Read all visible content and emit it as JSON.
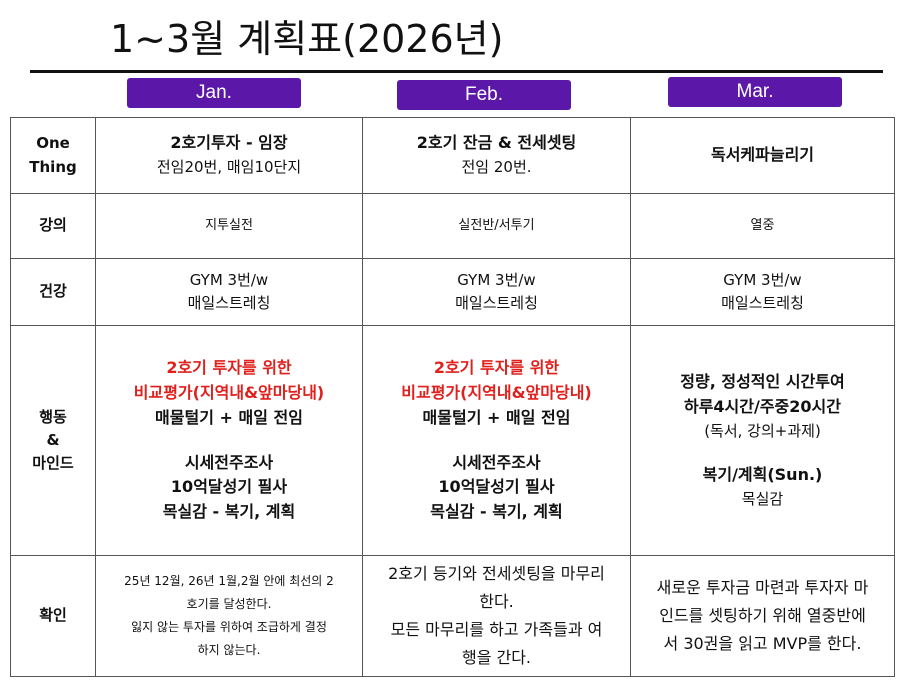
{
  "title": "1~3월 계획표(2026년)",
  "months": [
    "Jan.",
    "Feb.",
    "Mar."
  ],
  "colors": {
    "month_pill": "#5b18a8",
    "highlight": "#e0201c"
  },
  "rows": [
    {
      "label": [
        "One",
        "Thing"
      ],
      "cells": [
        [
          {
            "t": "2호기투자 - 임장",
            "c": "b"
          },
          {
            "t": "전임20번, 매임10단지",
            "c": "n"
          }
        ],
        [
          {
            "t": "2호기 잔금 & 전세셋팅",
            "c": "b"
          },
          {
            "t": "전임 20번.",
            "c": "n"
          }
        ],
        [
          {
            "t": "독서케파늘리기",
            "c": "b"
          }
        ]
      ]
    },
    {
      "label": [
        "강의"
      ],
      "cells": [
        [
          {
            "t": "지투실전",
            "c": "s"
          }
        ],
        [
          {
            "t": "실전반/서투기",
            "c": "s"
          }
        ],
        [
          {
            "t": "열중",
            "c": "s"
          }
        ]
      ]
    },
    {
      "label": [
        "건강"
      ],
      "cells": [
        [
          {
            "t": "GYM 3번/w",
            "c": "n"
          },
          {
            "t": "매일스트레칭",
            "c": "n"
          }
        ],
        [
          {
            "t": "GYM 3번/w",
            "c": "n"
          },
          {
            "t": "매일스트레칭",
            "c": "n"
          }
        ],
        [
          {
            "t": "GYM 3번/w",
            "c": "n"
          },
          {
            "t": "매일스트레칭",
            "c": "n"
          }
        ]
      ]
    },
    {
      "label": [
        "행동",
        "&",
        "마인드"
      ],
      "cells": [
        [
          {
            "t": "2호기 투자를 위한",
            "c": "red"
          },
          {
            "t": "비교평가(지역내&앞마당내)",
            "c": "red"
          },
          {
            "t": "매물털기 + 매일 전임",
            "c": "b"
          },
          {
            "t": "",
            "c": "gap"
          },
          {
            "t": "시세전주조사",
            "c": "b"
          },
          {
            "t": "10억달성기 필사",
            "c": "b"
          },
          {
            "t": "목실감 - 복기, 계획",
            "c": "b"
          }
        ],
        [
          {
            "t": "2호기 투자를 위한",
            "c": "red"
          },
          {
            "t": "비교평가(지역내&앞마당내)",
            "c": "red"
          },
          {
            "t": "매물털기 + 매일 전임",
            "c": "b"
          },
          {
            "t": "",
            "c": "gap"
          },
          {
            "t": "시세전주조사",
            "c": "b"
          },
          {
            "t": "10억달성기 필사",
            "c": "b"
          },
          {
            "t": "목실감 - 복기, 계획",
            "c": "b"
          }
        ],
        [
          {
            "t": "정량, 정성적인 시간투여",
            "c": "b"
          },
          {
            "t": "하루4시간/주중20시간",
            "c": "b"
          },
          {
            "t": "(독서,  강의+과제)",
            "c": "n"
          },
          {
            "t": "",
            "c": "gap"
          },
          {
            "t": "복기/계획(Sun.)",
            "c": "b"
          },
          {
            "t": "목실감",
            "c": "n"
          }
        ]
      ]
    },
    {
      "label": [
        "확인"
      ],
      "cells": [
        [
          {
            "t": "25년 12월, 26년 1월,2월 안에 최선의 2",
            "c": "xs"
          },
          {
            "t": "호기를 달성한다.",
            "c": "xs"
          },
          {
            "t": "잃지 않는 투자를 위하여 조급하게 결정",
            "c": "xs"
          },
          {
            "t": "하지 않는다.",
            "c": "xs"
          }
        ],
        [
          {
            "t": "2호기 등기와 전세셋팅을 마무리",
            "c": "lg"
          },
          {
            "t": "한다.",
            "c": "lg"
          },
          {
            "t": "모든 마무리를 하고 가족들과 여",
            "c": "lg"
          },
          {
            "t": "행을 간다.",
            "c": "lg"
          }
        ],
        [
          {
            "t": "새로운 투자금 마련과 투자자 마",
            "c": "lg"
          },
          {
            "t": "인드를 셋팅하기 위해 열중반에",
            "c": "lg"
          },
          {
            "t": "서 30권을 읽고 MVP를 한다.",
            "c": "lg"
          }
        ]
      ]
    }
  ]
}
